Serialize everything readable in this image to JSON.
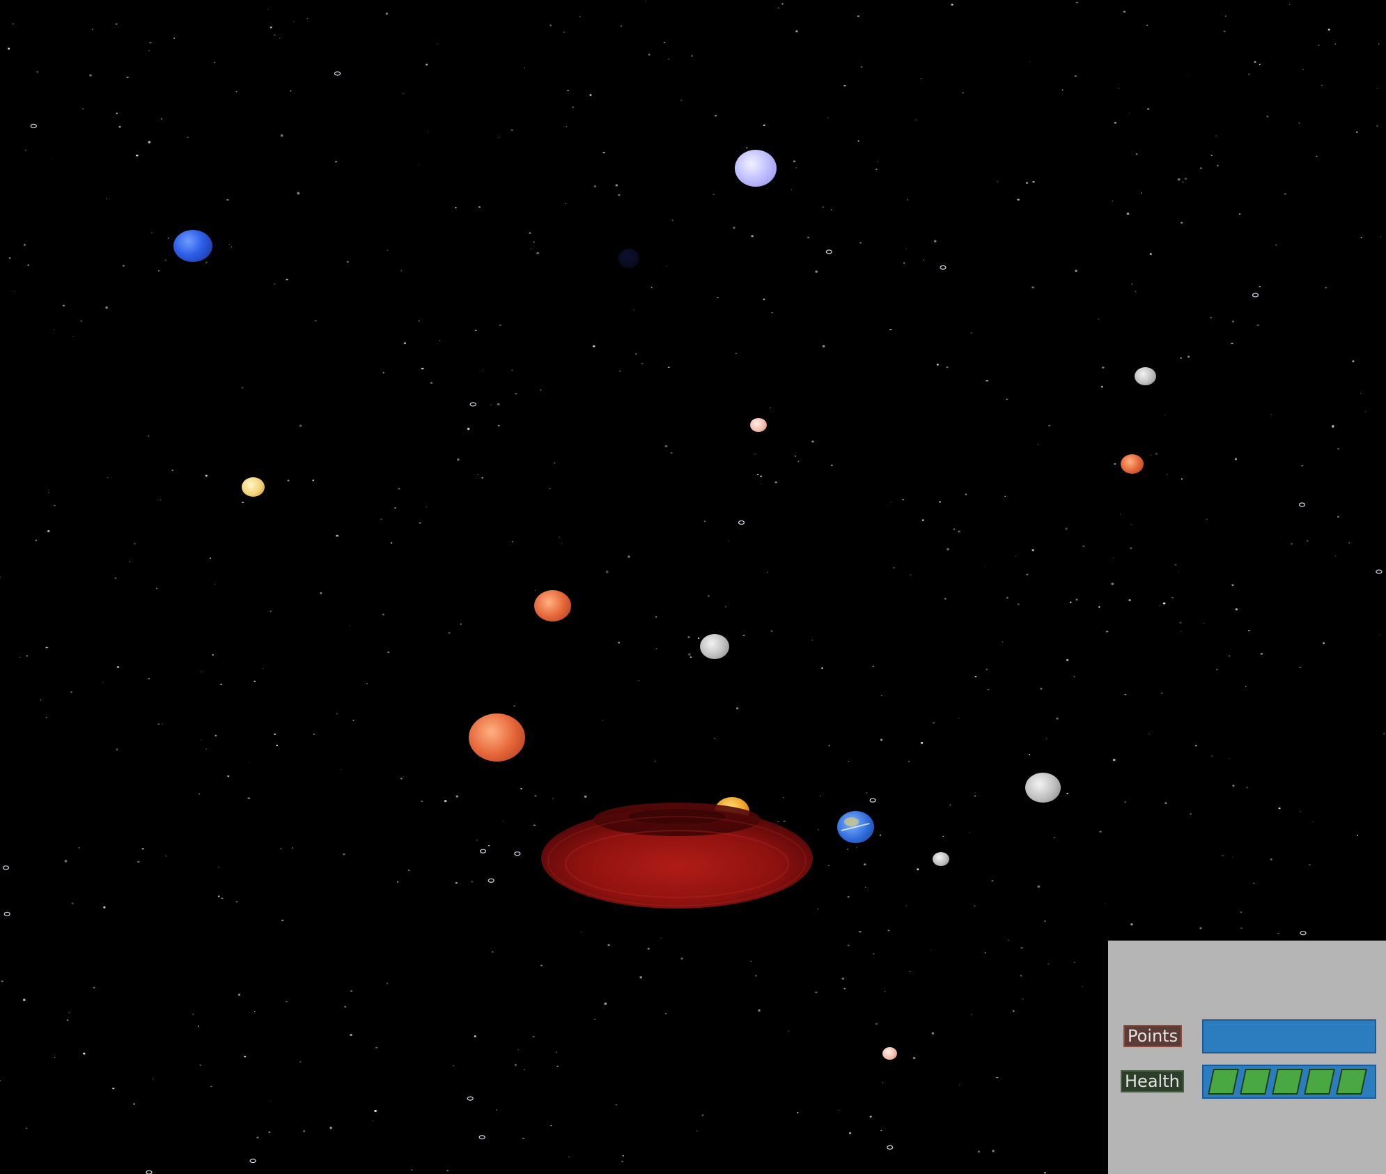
{
  "hud": {
    "points_label": "Points",
    "health_label": "Health",
    "health_segments_total": 5,
    "health_segments_filled": 5
  },
  "colors": {
    "space": "#000000",
    "hud_panel": "#b5b5b5",
    "points_bar": "#2b7dbf",
    "health_segment": "#4aa843",
    "torus": "#8a0f0f"
  }
}
